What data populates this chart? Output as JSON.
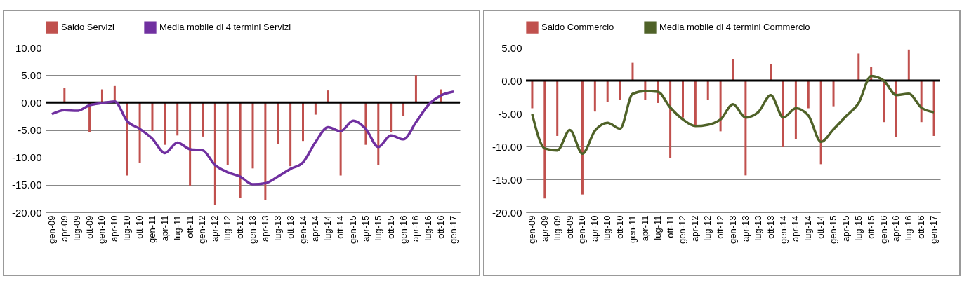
{
  "chart_data": [
    {
      "type": "bar",
      "categories": [
        "gen-09",
        "apr-09",
        "lug-09",
        "ott-09",
        "gen-10",
        "apr-10",
        "lug-10",
        "ott-10",
        "gen-11",
        "apr-11",
        "lug-11",
        "ott-11",
        "gen-12",
        "apr-12",
        "lug-12",
        "ott-12",
        "gen-13",
        "apr-13",
        "lug-13",
        "ott-13",
        "gen-14",
        "apr-14",
        "lug-14",
        "ott-14",
        "gen-15",
        "apr-15",
        "lug-15",
        "ott-15",
        "gen-16",
        "apr-16",
        "lug-16",
        "ott-16",
        "gen-17"
      ],
      "series": [
        {
          "name": "Saldo Servizi",
          "color": "#c0504d",
          "values": [
            null,
            2.6,
            null,
            -5.4,
            2.4,
            3.0,
            -13.3,
            -11.0,
            -5.2,
            -7.7,
            -6.0,
            -15.2,
            -6.2,
            -18.7,
            -11.4,
            -17.4,
            -12.0,
            -17.8,
            -7.5,
            -11.6,
            -7.0,
            -2.2,
            2.2,
            -13.3,
            null,
            -7.7,
            -11.4,
            -5.4,
            -2.5,
            5.0,
            null,
            2.4,
            null
          ]
        },
        {
          "name": "Media mobile di 4 termini Servizi",
          "type": "line",
          "color": "#7030a0",
          "values": [
            -2.1,
            -1.4,
            -1.5,
            -0.5,
            -0.1,
            0.2,
            -3.4,
            -4.8,
            -6.6,
            -9.2,
            -7.3,
            -8.5,
            -8.7,
            -11.4,
            -12.7,
            -13.5,
            -14.9,
            -14.7,
            -13.5,
            -12.1,
            -10.9,
            -7.2,
            -4.5,
            -5.2,
            -3.3,
            -4.8,
            -8.1,
            -6.0,
            -6.7,
            -3.6,
            -0.4,
            1.3,
            2.0
          ]
        }
      ],
      "ylim": [
        -20,
        10
      ],
      "yticks": [
        {
          "value": -20,
          "label": "-20.00"
        },
        {
          "value": -15,
          "label": "-15.00"
        },
        {
          "value": -10,
          "label": "-10.00"
        },
        {
          "value": -5,
          "label": "-5.00"
        },
        {
          "value": 0,
          "label": "0.00"
        },
        {
          "value": 5,
          "label": "5.00"
        },
        {
          "value": 10,
          "label": "10.00"
        }
      ],
      "grid": "y",
      "legend": "top"
    },
    {
      "type": "bar",
      "categories": [
        "gen-09",
        "apr-09",
        "lug-09",
        "ott-09",
        "gen-10",
        "apr-10",
        "lug-10",
        "ott-10",
        "gen-11",
        "apr-11",
        "lug-11",
        "ott-11",
        "gen-12",
        "apr-12",
        "lug-12",
        "ott-12",
        "gen-13",
        "apr-13",
        "lug-13",
        "ott-13",
        "gen-14",
        "apr-14",
        "lug-14",
        "ott-14",
        "gen-15",
        "apr-15",
        "lug-15",
        "ott-15",
        "gen-16",
        "apr-16",
        "lug-16",
        "ott-16",
        "gen-17"
      ],
      "series": [
        {
          "name": "Saldo Commercio",
          "color": "#c0504d",
          "values": [
            -4.2,
            -17.9,
            -8.4,
            null,
            -17.3,
            -4.7,
            -3.2,
            -2.9,
            2.7,
            -2.9,
            -3.4,
            -11.8,
            -5.6,
            -6.7,
            -2.9,
            -7.7,
            3.3,
            -14.4,
            null,
            2.5,
            -10.1,
            -8.9,
            -4.2,
            -12.7,
            -3.9,
            null,
            4.1,
            2.1,
            -6.3,
            -8.6,
            4.7,
            -6.3,
            -8.4
          ]
        },
        {
          "name": "Media mobile di 4 termini Commercio",
          "type": "line",
          "color": "#4f6228",
          "values": [
            -5.1,
            -10.3,
            -10.6,
            -7.5,
            -11.1,
            -7.6,
            -6.4,
            -7.3,
            -2.0,
            -1.6,
            -1.7,
            -4.1,
            -5.9,
            -6.9,
            -6.7,
            -5.9,
            -3.6,
            -5.6,
            -4.8,
            -2.2,
            -5.6,
            -4.2,
            -5.3,
            -9.3,
            -7.4,
            -5.4,
            -3.4,
            0.7,
            0.0,
            -2.2,
            -2.0,
            -4.1,
            -4.8
          ]
        }
      ],
      "ylim": [
        -20,
        5
      ],
      "yticks": [
        {
          "value": -20,
          "label": "-20.00"
        },
        {
          "value": -15,
          "label": "-15.00"
        },
        {
          "value": -10,
          "label": "-10.00"
        },
        {
          "value": -5,
          "label": "-5.00"
        },
        {
          "value": 0,
          "label": "0.00"
        },
        {
          "value": 5,
          "label": "5.00"
        }
      ],
      "grid": "y",
      "legend": "top"
    }
  ]
}
